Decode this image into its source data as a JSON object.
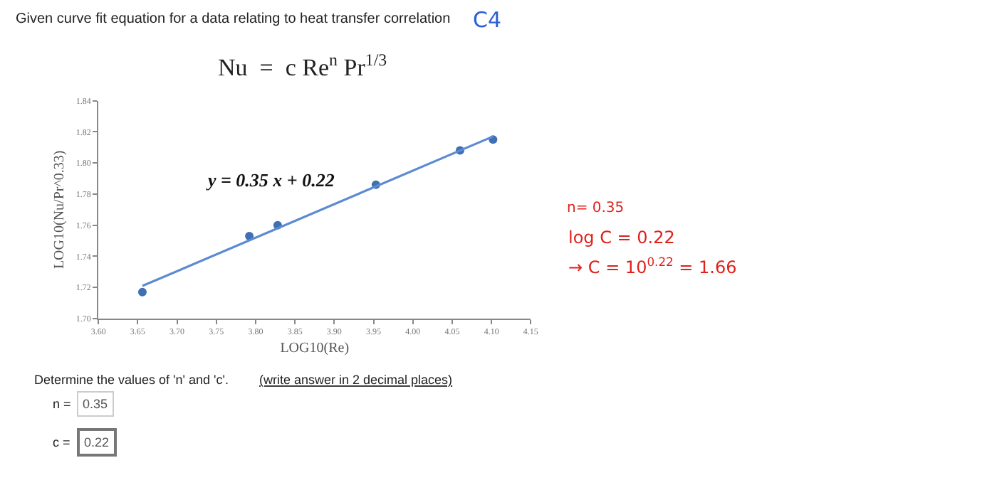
{
  "chart_data": {
    "type": "scatter",
    "title": "Given curve fit equation for a data relating to heat transfer correlation",
    "subtitle": "Nu  =  c Re$^{n}$ Pr$^{1/3}$",
    "xlabel": "LOG10(Re)",
    "ylabel": "LOG10(Nu/Pr^0.33)",
    "xlim": [
      3.6,
      4.15
    ],
    "ylim": [
      1.7,
      1.84
    ],
    "xticks": [
      {
        "value": 3.6,
        "label": "3.60"
      },
      3.65,
      {
        "value": 3.7,
        "label": "3.70"
      },
      3.75,
      {
        "value": 3.8,
        "label": "3.80"
      },
      3.85,
      {
        "value": 3.9,
        "label": "3.90"
      },
      3.95,
      {
        "value": 4.0,
        "label": "4.00"
      },
      4.05,
      {
        "value": 4.1,
        "label": "4.10"
      },
      4.15
    ],
    "yticks": [
      {
        "value": 1.7,
        "label": "1.70"
      },
      1.72,
      1.74,
      1.76,
      1.78,
      {
        "value": 1.8,
        "label": "1.80"
      },
      1.82,
      1.84
    ],
    "series": [
      {
        "color": "#3f6fb5",
        "marker": "circle",
        "x": [
          3.656,
          3.792,
          3.828,
          3.953,
          4.06,
          4.102
        ],
        "values": [
          1.717,
          1.753,
          1.76,
          1.786,
          1.808,
          1.815
        ]
      },
      {
        "type": "line",
        "color": "#5b8bd0",
        "marker": "none",
        "line_style": "solid",
        "x": [
          3.656,
          4.102
        ],
        "values": [
          1.721,
          1.817
        ]
      }
    ],
    "annotations": [
      "C4",
      "y = 0.35 x + 0.22",
      "n= 0.35",
      "log C = 0.22",
      "→ C = 10$^{0.22}$ = 1.66",
      "Determine the values of 'n' and 'c'.",
      "(write answer in 2 decimal places)",
      "n =",
      "0.35",
      "c =",
      "0.22"
    ]
  }
}
